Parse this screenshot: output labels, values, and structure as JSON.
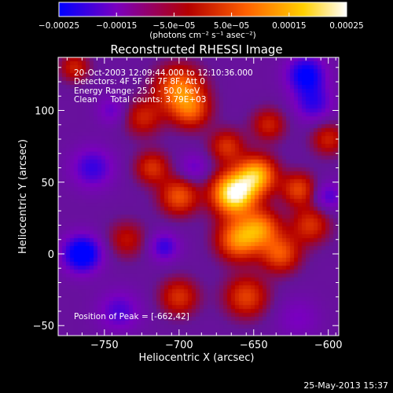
{
  "chart_data": {
    "type": "heatmap",
    "title": "Reconstructed RHESSI Image",
    "xlabel": "Heliocentric X (arcsec)",
    "ylabel": "Heliocentric Y (arcsec)",
    "xlim": [
      -781,
      -593
    ],
    "ylim": [
      -57,
      137
    ],
    "x_ticks": [
      -750,
      -700,
      -650,
      -600
    ],
    "y_ticks": [
      -50,
      0,
      50,
      100
    ],
    "peak": [
      -662,
      42
    ],
    "colorbar": {
      "range": [
        -0.00025,
        0.00025
      ],
      "tick_values": [
        -0.00025,
        -0.00015,
        -5e-05,
        5e-05,
        0.00015,
        0.00025
      ],
      "tick_labels": [
        "-0.00025",
        "-0.00015",
        "−5.0e−05",
        "5.0e−05",
        "0.00015",
        "0.00025"
      ],
      "units_label": "(photons cm⁻² s⁻¹ asec⁻²)",
      "colors": [
        "#0000ff",
        "#7a00bf",
        "#b40000",
        "#ff6000",
        "#ffd000",
        "#ffffff"
      ]
    },
    "sources": [
      {
        "x": -663,
        "y": 42,
        "amp": 1.0,
        "sigma": 10
      },
      {
        "x": -648,
        "y": 55,
        "amp": 0.7,
        "sigma": 9
      },
      {
        "x": -660,
        "y": 10,
        "amp": 0.6,
        "sigma": 10
      },
      {
        "x": -700,
        "y": 115,
        "amp": 0.55,
        "sigma": 11
      },
      {
        "x": -692,
        "y": 100,
        "amp": 0.4,
        "sigma": 9
      },
      {
        "x": -645,
        "y": 18,
        "amp": 0.5,
        "sigma": 9
      },
      {
        "x": -632,
        "y": 0,
        "amp": 0.45,
        "sigma": 9
      },
      {
        "x": -620,
        "y": 45,
        "amp": 0.4,
        "sigma": 8
      },
      {
        "x": -612,
        "y": 20,
        "amp": 0.35,
        "sigma": 9
      },
      {
        "x": -700,
        "y": 40,
        "amp": 0.45,
        "sigma": 9
      },
      {
        "x": -718,
        "y": 60,
        "amp": 0.35,
        "sigma": 8
      },
      {
        "x": -724,
        "y": 95,
        "amp": 0.3,
        "sigma": 9
      },
      {
        "x": -668,
        "y": 75,
        "amp": 0.35,
        "sigma": 8
      },
      {
        "x": -640,
        "y": 90,
        "amp": 0.3,
        "sigma": 8
      },
      {
        "x": -655,
        "y": -30,
        "amp": 0.4,
        "sigma": 10
      },
      {
        "x": -700,
        "y": -30,
        "amp": 0.35,
        "sigma": 9
      },
      {
        "x": -735,
        "y": 10,
        "amp": 0.25,
        "sigma": 9
      },
      {
        "x": -600,
        "y": 80,
        "amp": 0.3,
        "sigma": 8
      },
      {
        "x": -770,
        "y": 130,
        "amp": 0.3,
        "sigma": 7
      },
      {
        "x": -758,
        "y": 60,
        "amp": -0.3,
        "sigma": 10
      },
      {
        "x": -765,
        "y": 0,
        "amp": -0.55,
        "sigma": 9
      },
      {
        "x": -740,
        "y": -40,
        "amp": -0.25,
        "sigma": 10
      },
      {
        "x": -615,
        "y": 125,
        "amp": -0.45,
        "sigma": 9
      },
      {
        "x": -610,
        "y": 105,
        "amp": -0.3,
        "sigma": 9
      },
      {
        "x": -600,
        "y": 40,
        "amp": -0.25,
        "sigma": 7
      },
      {
        "x": -710,
        "y": 5,
        "amp": -0.3,
        "sigma": 7
      },
      {
        "x": -745,
        "y": 100,
        "amp": -0.2,
        "sigma": 7
      },
      {
        "x": -690,
        "y": 60,
        "amp": -0.2,
        "sigma": 7
      },
      {
        "x": -620,
        "y": -45,
        "amp": -0.15,
        "sigma": 10
      }
    ]
  },
  "overlay": {
    "line1": "20-Oct-2003 12:09:44.000 to 12:10:36.000",
    "line2": "Detectors: 4F 5F 6F 7F 8F, Att 0",
    "line3": "Energy Range: 25.0 - 50.0 keV",
    "line4": "Clean     Total counts: 3.79E+03",
    "peak_label": "Position of Peak = [-662,42]"
  },
  "footer": {
    "date": "25-May-2013 15:37"
  }
}
